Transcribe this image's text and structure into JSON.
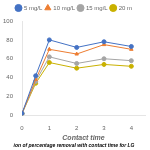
{
  "chart_data": {
    "type": "line",
    "xlabel": "Contact time",
    "subtitle": "ion of percentage removal with contact time for LG",
    "x": [
      0,
      0.5,
      1,
      2,
      3,
      4
    ],
    "xlim": [
      0,
      4.5
    ],
    "xticks": [
      0,
      1,
      2,
      3,
      4
    ],
    "ylim": [
      0,
      100
    ],
    "yticks": [
      0,
      20,
      40,
      60,
      80,
      100
    ],
    "grid": false,
    "legend": "top",
    "series": [
      {
        "name": "5 mg/L",
        "color": "#4472C4",
        "marker": "circle",
        "line_style": "solid",
        "values": [
          2,
          42,
          80,
          72,
          78,
          73
        ]
      },
      {
        "name": "10 mg/L",
        "color": "#ED7D31",
        "marker": "triangle",
        "line_style": "solid",
        "values": [
          2,
          38,
          70,
          65,
          75,
          70
        ]
      },
      {
        "name": "15 mg/L",
        "color": "#A5A5A5",
        "marker": "circle",
        "line_style": "solid",
        "values": [
          2,
          36,
          62,
          55,
          60,
          58
        ]
      },
      {
        "name": "20 m",
        "color": "#C9B100",
        "marker": "circle",
        "line_style": "solid",
        "values": [
          2,
          34,
          56,
          50,
          54,
          52
        ]
      }
    ]
  }
}
